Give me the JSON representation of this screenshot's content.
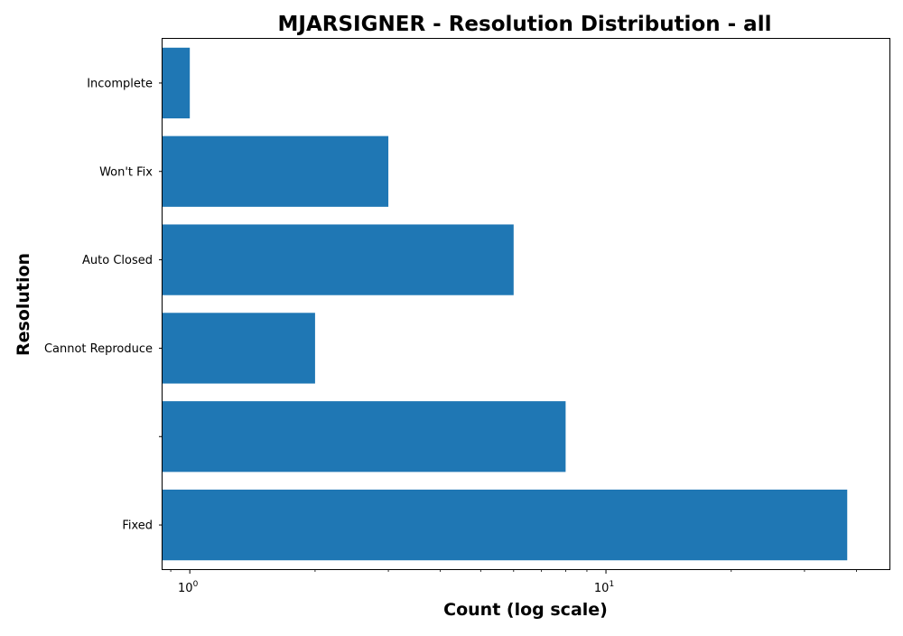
{
  "chart_data": {
    "type": "bar",
    "orientation": "horizontal",
    "title": "MJARSIGNER - Resolution Distribution - all",
    "xlabel": "Count (log scale)",
    "ylabel": "Resolution",
    "x_scale": "log",
    "xlim": [
      0.86,
      48
    ],
    "x_ticks": [
      {
        "value": 1,
        "base": "10",
        "exponent": "0"
      },
      {
        "value": 10,
        "base": "10",
        "exponent": "1"
      }
    ],
    "categories": [
      "Fixed",
      "",
      "Cannot Reproduce",
      "Auto Closed",
      "Won't Fix",
      "Incomplete"
    ],
    "values": [
      38,
      8,
      2,
      6,
      3,
      1
    ],
    "grid": false,
    "legend": "none",
    "bar_color": "#1f77b4"
  }
}
